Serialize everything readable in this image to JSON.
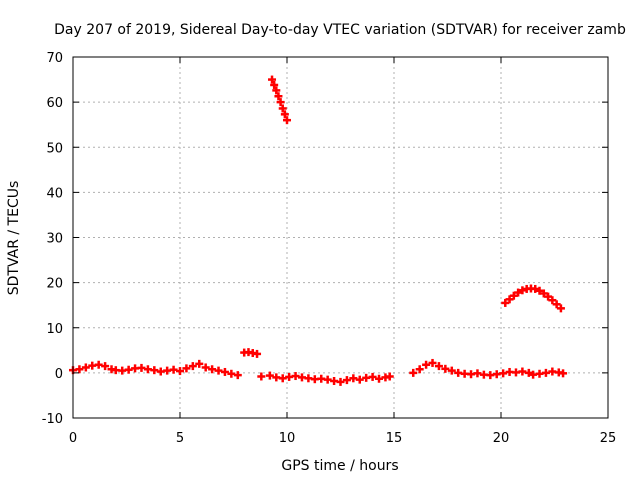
{
  "chart_data": {
    "type": "scatter",
    "title": "Day 207 of 2019, Sidereal Day-to-day VTEC variation (SDTVAR) for receiver zamb",
    "xlabel": "GPS time / hours",
    "ylabel": "SDTVAR / TECUs",
    "xlim": [
      0,
      25
    ],
    "ylim": [
      -10,
      70
    ],
    "xticks": [
      0,
      5,
      10,
      15,
      20,
      25
    ],
    "yticks": [
      -10,
      0,
      10,
      20,
      30,
      40,
      50,
      60,
      70
    ],
    "grid": true,
    "series_color": "#ff0000",
    "series": [
      {
        "name": "SDTVAR",
        "x": [
          0.0,
          0.3,
          0.6,
          0.9,
          1.2,
          1.5,
          1.8,
          2.0,
          2.3,
          2.6,
          2.9,
          3.2,
          3.5,
          3.8,
          4.1,
          4.4,
          4.7,
          5.0,
          5.3,
          5.6,
          5.9,
          6.2,
          6.5,
          6.8,
          7.1,
          7.4,
          7.7,
          8.0,
          8.2,
          8.4,
          8.6,
          8.8,
          9.2,
          9.5,
          9.8,
          10.1,
          10.4,
          10.7,
          11.0,
          11.3,
          11.6,
          11.9,
          12.2,
          12.5,
          12.8,
          13.1,
          13.4,
          13.7,
          14.0,
          14.3,
          14.6,
          14.8,
          15.9,
          16.2,
          16.5,
          16.8,
          17.1,
          17.4,
          17.7,
          18.0,
          18.3,
          18.6,
          18.9,
          19.2,
          19.5,
          19.8,
          20.1,
          20.4,
          20.7,
          21.0,
          21.3,
          21.5,
          21.8,
          22.1,
          22.4,
          22.7,
          22.9,
          9.3,
          9.4,
          9.5,
          9.6,
          9.7,
          9.8,
          9.9,
          10.0,
          20.2,
          20.4,
          20.6,
          20.8,
          21.0,
          21.2,
          21.4,
          21.6,
          21.8,
          22.0,
          22.2,
          22.4,
          22.6,
          22.8
        ],
        "y": [
          0.6,
          0.8,
          1.2,
          1.6,
          1.8,
          1.5,
          0.8,
          0.6,
          0.5,
          0.7,
          1.0,
          1.1,
          0.8,
          0.6,
          0.3,
          0.5,
          0.7,
          0.4,
          1.0,
          1.5,
          2.0,
          1.2,
          0.8,
          0.5,
          0.2,
          -0.2,
          -0.5,
          4.5,
          4.6,
          4.4,
          4.2,
          -0.8,
          -0.6,
          -1.0,
          -1.2,
          -0.9,
          -0.7,
          -1.0,
          -1.2,
          -1.4,
          -1.3,
          -1.5,
          -1.8,
          -2.0,
          -1.6,
          -1.2,
          -1.5,
          -1.1,
          -0.9,
          -1.3,
          -1.0,
          -0.8,
          0.0,
          0.8,
          1.8,
          2.2,
          1.5,
          0.9,
          0.5,
          0.0,
          -0.2,
          -0.3,
          -0.1,
          -0.4,
          -0.5,
          -0.3,
          -0.1,
          0.2,
          0.1,
          0.3,
          0.0,
          -0.4,
          -0.2,
          0.0,
          0.3,
          0.1,
          -0.1,
          65.0,
          63.8,
          62.6,
          61.3,
          60.0,
          58.6,
          57.3,
          56.0,
          15.5,
          16.3,
          17.1,
          17.8,
          18.3,
          18.6,
          18.7,
          18.6,
          18.2,
          17.6,
          16.9,
          16.1,
          15.2,
          14.3
        ]
      }
    ]
  }
}
